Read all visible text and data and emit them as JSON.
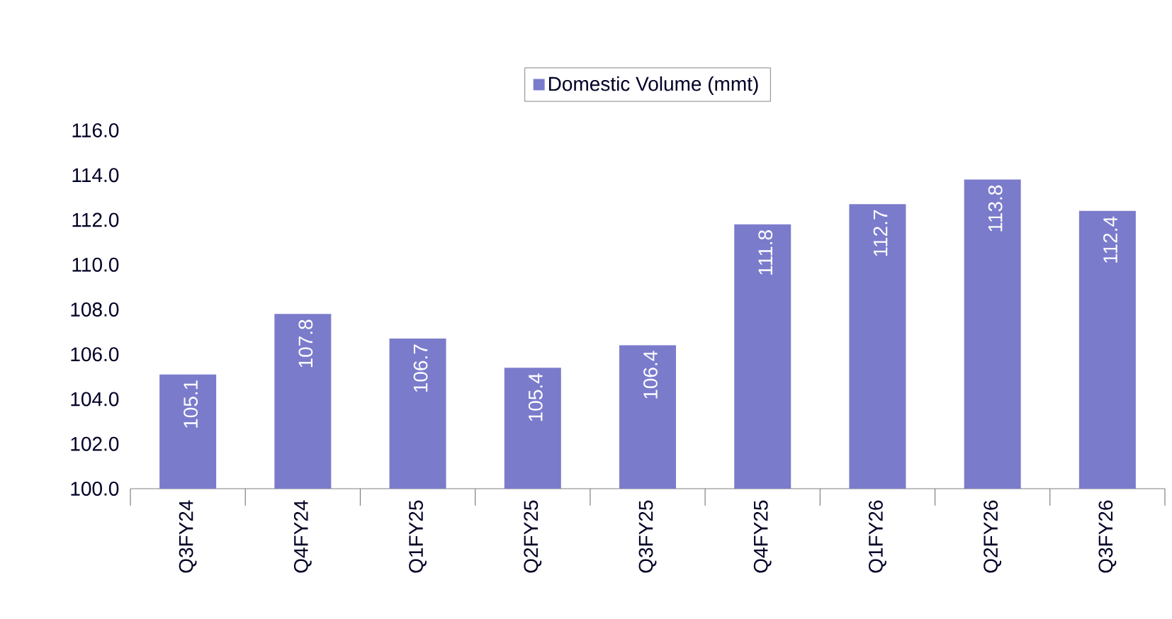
{
  "chart_data": {
    "type": "bar",
    "categories": [
      "Q3FY24",
      "Q4FY24",
      "Q1FY25",
      "Q2FY25",
      "Q3FY25",
      "Q4FY25",
      "Q1FY26",
      "Q2FY26",
      "Q3FY26"
    ],
    "series": [
      {
        "name": "Domestic Volume (mmt)",
        "color": "#7b7bcc",
        "values": [
          105.1,
          107.8,
          106.7,
          105.4,
          106.4,
          111.8,
          112.7,
          113.8,
          112.4
        ]
      }
    ],
    "ylim": [
      100,
      116
    ],
    "yticks": [
      {
        "value": 100,
        "label": "100.0"
      },
      {
        "value": 102,
        "label": "102.0"
      },
      {
        "value": 104,
        "label": "104.0"
      },
      {
        "value": 106,
        "label": "106.0"
      },
      {
        "value": 108,
        "label": "108.0"
      },
      {
        "value": 110,
        "label": "110.0"
      },
      {
        "value": 112,
        "label": "112.0"
      },
      {
        "value": 114,
        "label": "114.0"
      },
      {
        "value": 116,
        "label": "116.0"
      }
    ],
    "data_labels": true,
    "legend": "top",
    "grid": false
  }
}
